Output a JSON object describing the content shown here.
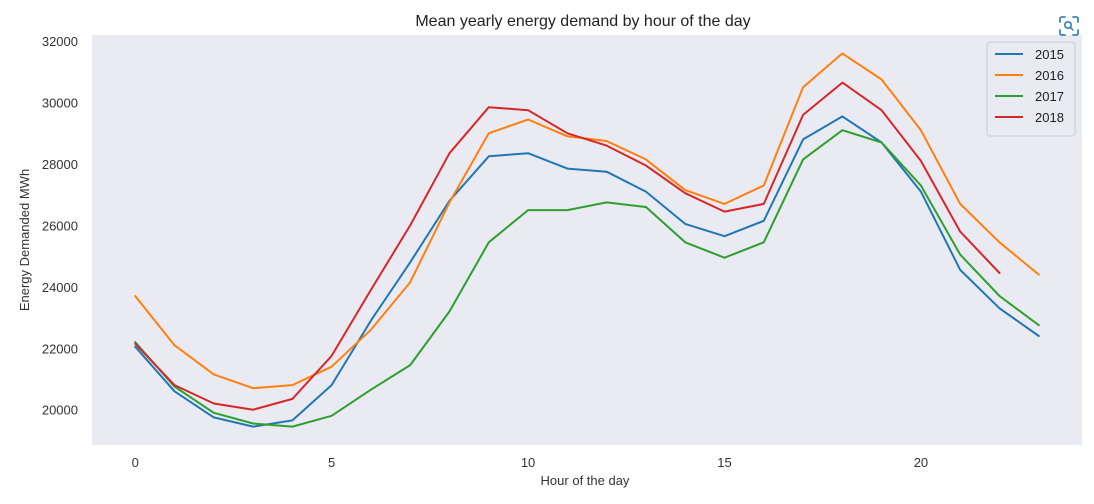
{
  "chart_data": {
    "type": "line",
    "title": "Mean yearly energy demand by hour of the day",
    "xlabel": "Hour of the day",
    "ylabel": "Energy Demanded MWh",
    "xlim": [
      -1.1,
      24.1
    ],
    "ylim": [
      18850,
      32200
    ],
    "xticks": [
      0,
      5,
      10,
      15,
      20
    ],
    "yticks": [
      20000,
      22000,
      24000,
      26000,
      28000,
      30000,
      32000
    ],
    "grid": false,
    "legend_position": "top-right",
    "series": [
      {
        "name": "2015",
        "color": "#1f77b4",
        "x": [
          0,
          1,
          2,
          3,
          4,
          5,
          6,
          7,
          8,
          9,
          10,
          11,
          12,
          13,
          14,
          15,
          16,
          17,
          18,
          19,
          20,
          21,
          22,
          23
        ],
        "values": [
          22050,
          20600,
          19750,
          19450,
          19650,
          20800,
          22900,
          24800,
          26800,
          28250,
          28350,
          27850,
          27750,
          27100,
          26050,
          25650,
          26150,
          28800,
          29550,
          28700,
          27100,
          24550,
          23300,
          22400
        ]
      },
      {
        "name": "2016",
        "color": "#ff7f0e",
        "x": [
          0,
          1,
          2,
          3,
          4,
          5,
          6,
          7,
          8,
          9,
          10,
          11,
          12,
          13,
          14,
          15,
          16,
          17,
          18,
          19,
          20,
          21,
          22,
          23
        ],
        "values": [
          23700,
          22100,
          21150,
          20700,
          20800,
          21400,
          22600,
          24150,
          26750,
          29000,
          29450,
          28900,
          28750,
          28150,
          27150,
          26700,
          27300,
          30500,
          31600,
          30750,
          29100,
          26700,
          25450,
          24400
        ]
      },
      {
        "name": "2017",
        "color": "#2ca02c",
        "x": [
          0,
          1,
          2,
          3,
          4,
          5,
          6,
          7,
          8,
          9,
          10,
          11,
          12,
          13,
          14,
          15,
          16,
          17,
          18,
          19,
          20,
          21,
          22,
          23
        ],
        "values": [
          22200,
          20750,
          19900,
          19550,
          19450,
          19800,
          20650,
          21450,
          23200,
          25450,
          26500,
          26500,
          26750,
          26600,
          25450,
          24950,
          25450,
          28150,
          29100,
          28700,
          27300,
          25050,
          23700,
          22750
        ]
      },
      {
        "name": "2018",
        "color": "#d62728",
        "x": [
          0,
          1,
          2,
          3,
          4,
          5,
          6,
          7,
          8,
          9,
          10,
          11,
          12,
          13,
          14,
          15,
          16,
          17,
          18,
          19,
          20,
          21,
          22
        ],
        "values": [
          22150,
          20800,
          20200,
          20000,
          20350,
          21750,
          23900,
          26000,
          28350,
          29850,
          29750,
          29000,
          28600,
          27950,
          27050,
          26450,
          26700,
          29600,
          30650,
          29750,
          28100,
          25800,
          24450
        ]
      }
    ]
  },
  "toolbar": {
    "scan_icon": "scan-image-icon"
  }
}
